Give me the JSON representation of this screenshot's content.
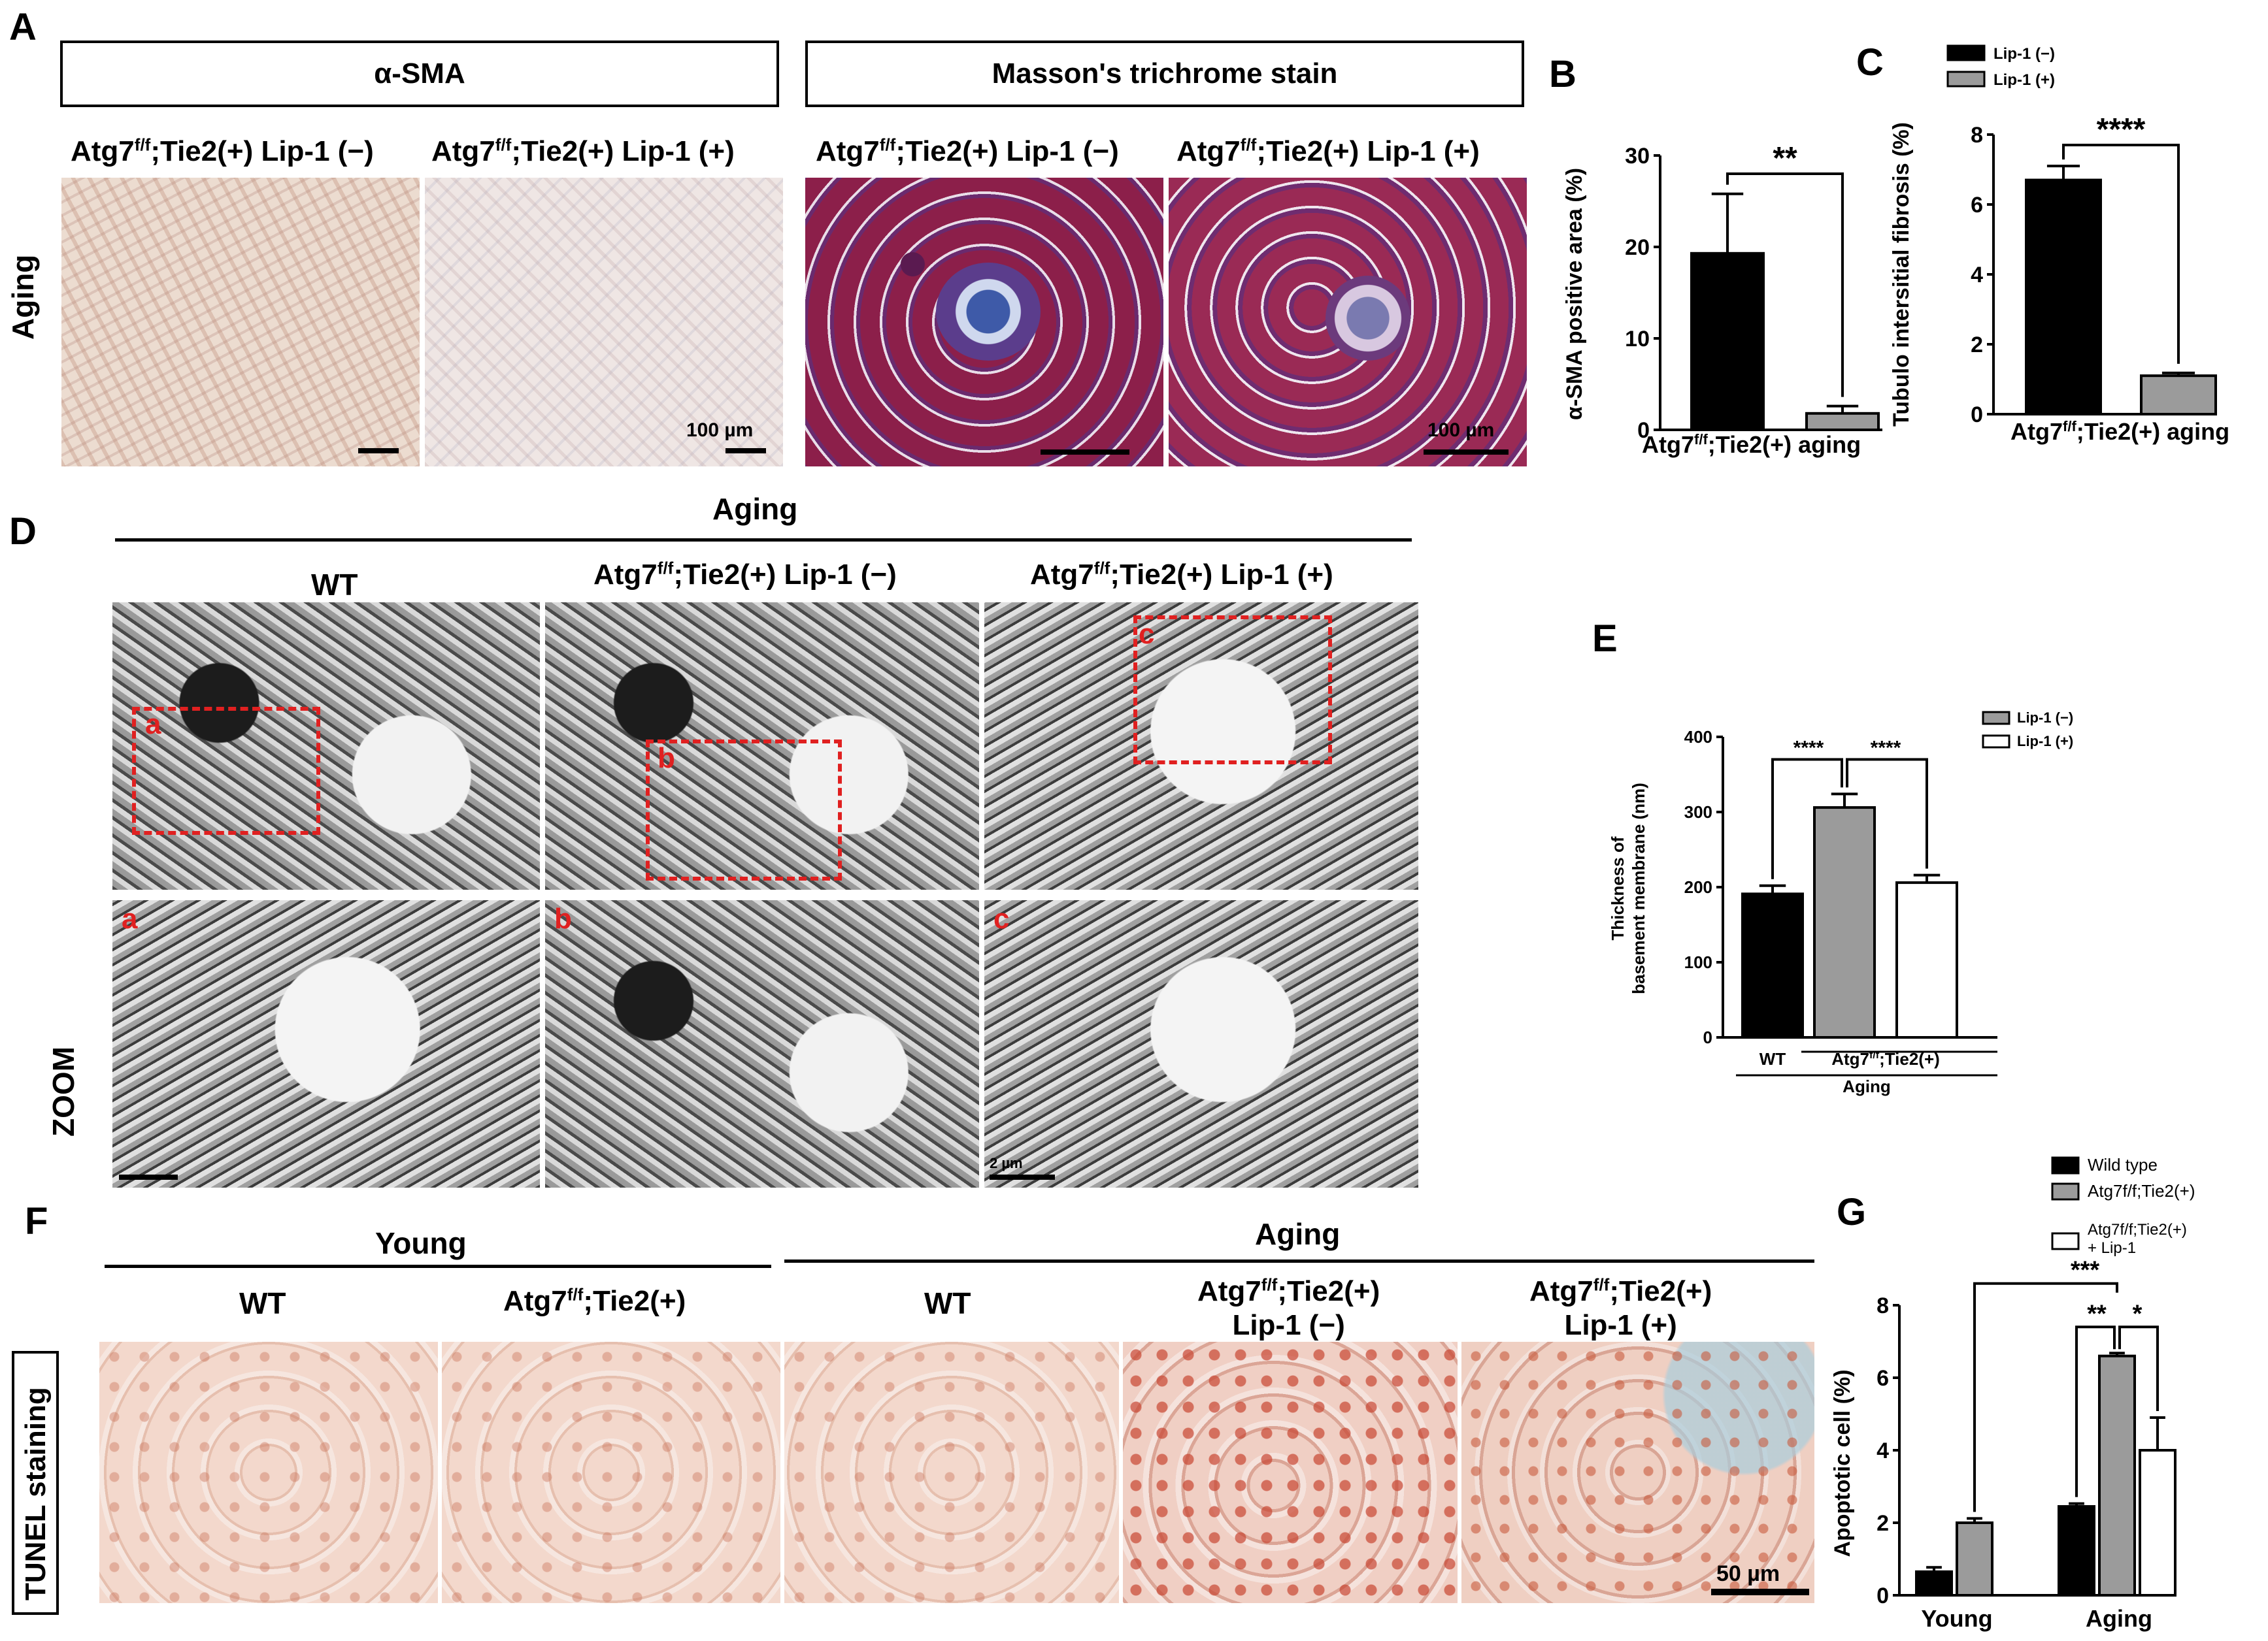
{
  "panel_labels": {
    "A": "A",
    "B": "B",
    "C": "C",
    "D": "D",
    "E": "E",
    "F": "F",
    "G": "G"
  },
  "panel_a": {
    "box_left": "α-SMA",
    "box_right": "Masson's trichrome stain",
    "row_label": "Aging",
    "col_labels": [
      "Atg7f/f;Tie2(+) Lip-1 (−)",
      "Atg7f/f;Tie2(+) Lip-1 (+)",
      "Atg7f/f;Tie2(+) Lip-1 (−)",
      "Atg7f/f;Tie2(+) Lip-1 (+)"
    ],
    "scale_label_1": "100 µm",
    "scale_label_2": "100 µm"
  },
  "panel_d": {
    "header": "Aging",
    "col_labels": [
      "WT",
      "Atg7f/f;Tie2(+) Lip-1 (−)",
      "Atg7f/f;Tie2(+) Lip-1 (+)"
    ],
    "row_label": "ZOOM",
    "insets": [
      "a",
      "b",
      "c"
    ],
    "micro_scale": "2 µm"
  },
  "panel_f": {
    "header_left": "Young",
    "header_right": "Aging",
    "col_labels": [
      "WT",
      "Atg7f/f;Tie2(+)",
      "WT",
      "Atg7f/f;Tie2(+)\nLip-1 (−)",
      "Atg7f/f;Tie2(+)\nLip-1 (+)"
    ],
    "row_label": "TUNEL staining",
    "scale_label": "50 µm"
  },
  "colors": {
    "black": "#000000",
    "gray": "#9b9b9b",
    "white": "#ffffff",
    "red": "#e02020"
  },
  "chart_data": [
    {
      "id": "B",
      "type": "bar",
      "ylabel": "α-SMA positive area (%)",
      "xlabel": "Atg7f/f;Tie2(+) aging",
      "categories": [
        "Lip-1 (−)",
        "Lip-1 (+)"
      ],
      "values": [
        19.3,
        1.8
      ],
      "errors": [
        6.5,
        0.8
      ],
      "colors": [
        "#000000",
        "#9b9b9b"
      ],
      "ylim": [
        0,
        30
      ],
      "yticks": [
        0,
        10,
        20,
        30
      ],
      "significance": "**"
    },
    {
      "id": "C",
      "type": "bar",
      "ylabel": "Tubulo intersitial fibrosis (%)",
      "xlabel": "Atg7f/f;Tie2(+) aging",
      "categories": [
        "Lip-1 (−)",
        "Lip-1 (+)"
      ],
      "values": [
        6.7,
        1.1
      ],
      "errors": [
        0.4,
        0.08
      ],
      "colors": [
        "#000000",
        "#9b9b9b"
      ],
      "ylim": [
        0,
        8
      ],
      "yticks": [
        0,
        2,
        4,
        6,
        8
      ],
      "legend": [
        "Lip-1 (−)",
        "Lip-1 (+)"
      ],
      "significance": "****"
    },
    {
      "id": "E",
      "type": "bar",
      "ylabel": "Thickness of basement membrane (nm)",
      "categories": [
        "WT",
        "Lip-1 (−)",
        "Lip-1 (+)"
      ],
      "group_labels": [
        "WT",
        "Atg7f/f;Tie2(+)"
      ],
      "group_caption": "Aging",
      "values": [
        191,
        306,
        206
      ],
      "errors": [
        11,
        18,
        10
      ],
      "colors": [
        "#000000",
        "#9b9b9b",
        "#ffffff"
      ],
      "ylim": [
        0,
        400
      ],
      "yticks": [
        0,
        100,
        200,
        300,
        400
      ],
      "legend": [
        "Lip-1 (−)",
        "Lip-1 (+)"
      ],
      "significance": [
        "****",
        "****"
      ]
    },
    {
      "id": "G",
      "type": "bar",
      "ylabel": "Apoptotic cell (%)",
      "categories": [
        "Young",
        "Aging"
      ],
      "series": [
        {
          "name": "Wild type",
          "values": [
            0.65,
            2.45
          ],
          "errors": [
            0.12,
            0.08
          ]
        },
        {
          "name": "Atg7f/f;Tie2(+)",
          "values": [
            2.0,
            6.6
          ],
          "errors": [
            0.12,
            0.08
          ]
        },
        {
          "name": "Atg7f/f;Tie2(+) + Lip-1",
          "values": [
            null,
            4.0
          ],
          "errors": [
            null,
            0.9
          ]
        }
      ],
      "colors": [
        "#000000",
        "#9b9b9b",
        "#ffffff"
      ],
      "ylim": [
        0,
        8
      ],
      "yticks": [
        0,
        2,
        4,
        6,
        8
      ],
      "significance": [
        "***",
        "**",
        "*"
      ]
    }
  ]
}
